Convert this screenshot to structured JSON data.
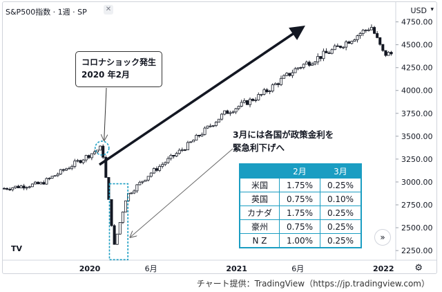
{
  "header": {
    "title": "S&P500指数 · 1週 · SP",
    "currency": "USD",
    "close_icon": "close-icon",
    "chevron_icon": "chevron-down-icon"
  },
  "callout": {
    "line1": "コロナショック発生",
    "line2": "2020 年2月"
  },
  "note": {
    "line1": "3月には各国が政策金利を",
    "line2": "緊急利下げへ"
  },
  "rate_table": {
    "headers": [
      "",
      "2月",
      "3月"
    ],
    "rows": [
      [
        "米国",
        "1.75%",
        "0.25%"
      ],
      [
        "英国",
        "0.75%",
        "0.10%"
      ],
      [
        "カナダ",
        "1.75%",
        "0.25%"
      ],
      [
        "豪州",
        "0.75%",
        "0.25%"
      ],
      [
        "N Z",
        "1.00%",
        "0.25%"
      ]
    ]
  },
  "logo_text": "TV",
  "scroll_button": "»",
  "settings_icon": "gear-icon",
  "credit": "チャート提供：TradingView（https://jp.tradingview.com）",
  "colors": {
    "up": "#ffffff",
    "down": "#131722",
    "outline": "#131722",
    "accent": "#1a9dc2",
    "arrow": "#131722"
  },
  "chart_data": {
    "type": "candlestick",
    "y_axis": {
      "ticks": [
        4750,
        4500,
        4250,
        4000,
        3750,
        3500,
        3250,
        3000,
        2750,
        2500,
        2250
      ],
      "tick_labels": [
        "4750.00",
        "4500.00",
        "4250.00",
        "4000.00",
        "3750.00",
        "3500.00",
        "3250.00",
        "3000.00",
        "2750.00",
        "2500.00",
        "2250.00"
      ],
      "range": [
        2130,
        4830
      ]
    },
    "x_axis": {
      "tick_labels": [
        "2020",
        "6月",
        "2021",
        "6月",
        "2022"
      ],
      "bold": [
        true,
        false,
        true,
        false,
        true
      ],
      "range": [
        "2019-06",
        "2022-02"
      ]
    },
    "grid": false,
    "key_points": [
      {
        "date": "2019-06",
        "close": 2930
      },
      {
        "date": "2019-09",
        "close": 2980
      },
      {
        "date": "2019-12",
        "close": 3220
      },
      {
        "date": "2020-02",
        "close": 3380
      },
      {
        "date": "2020-03",
        "close": 2300
      },
      {
        "date": "2020-04",
        "close": 2850
      },
      {
        "date": "2020-06",
        "close": 3100
      },
      {
        "date": "2020-09",
        "close": 3400
      },
      {
        "date": "2020-12",
        "close": 3750
      },
      {
        "date": "2021-03",
        "close": 3950
      },
      {
        "date": "2021-06",
        "close": 4250
      },
      {
        "date": "2021-09",
        "close": 4450
      },
      {
        "date": "2021-12",
        "close": 4700
      },
      {
        "date": "2022-01",
        "close": 4400
      }
    ]
  }
}
